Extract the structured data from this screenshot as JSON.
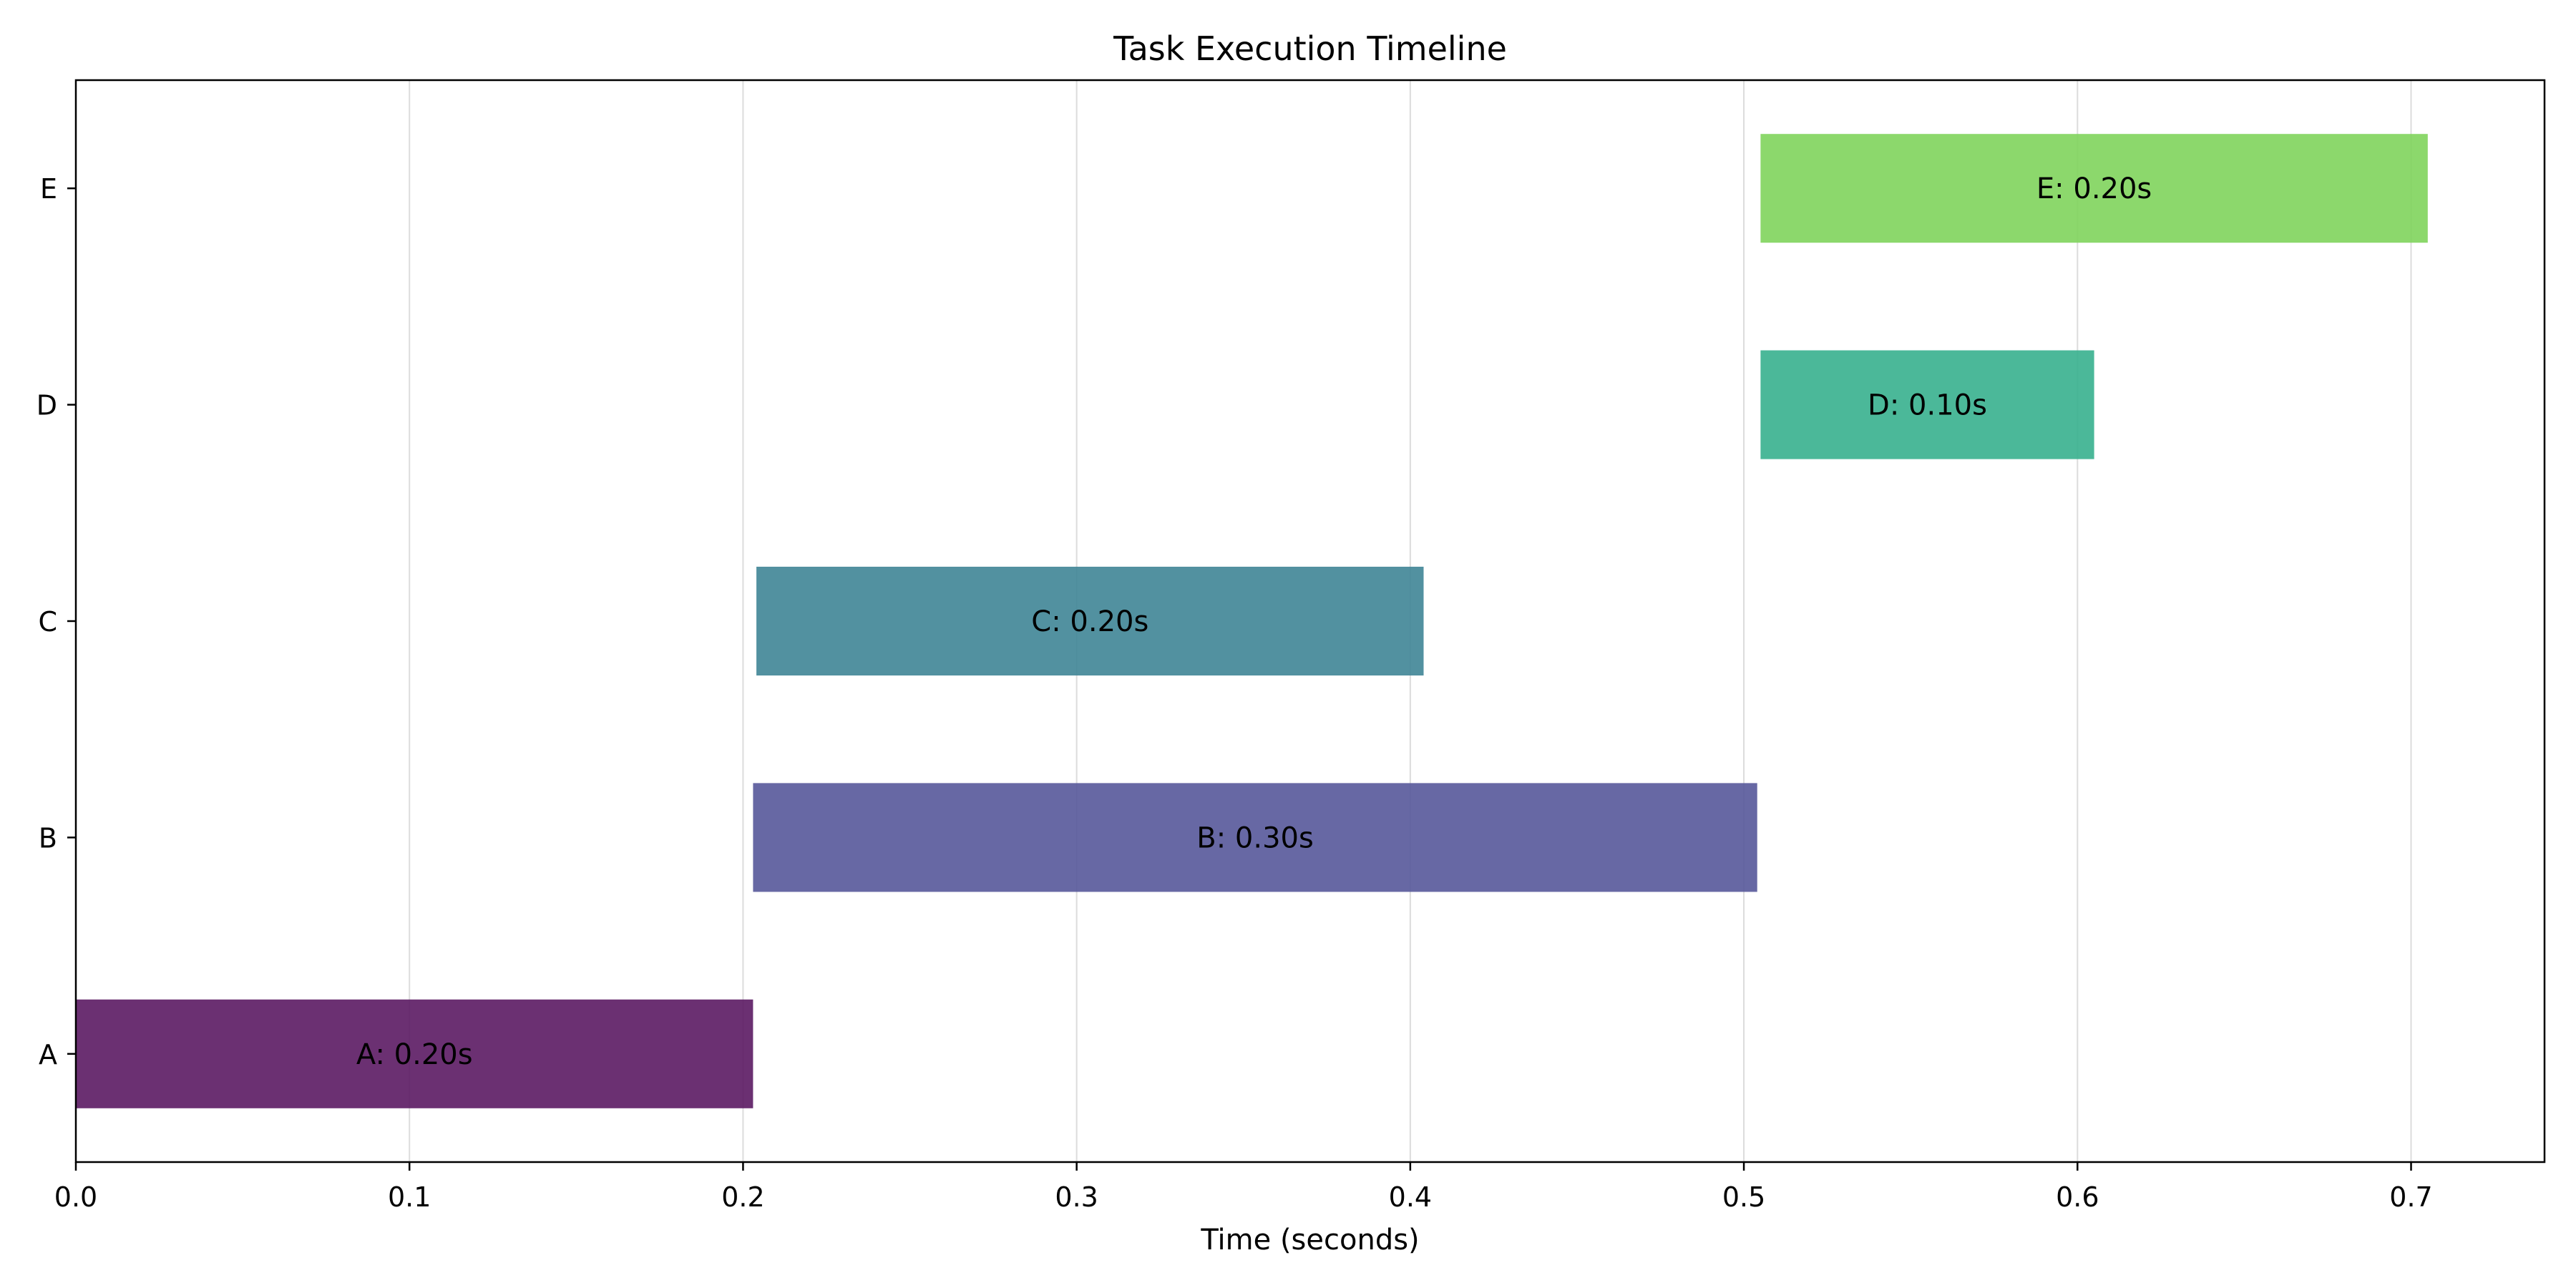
{
  "chart_data": {
    "type": "bar",
    "orientation": "horizontal",
    "title": "Task Execution Timeline",
    "xlabel": "Time (seconds)",
    "ylabel": "",
    "xlim": [
      0.0,
      0.74
    ],
    "xticks": [
      0.0,
      0.1,
      0.2,
      0.3,
      0.4,
      0.5,
      0.6,
      0.7
    ],
    "xtick_labels": [
      "0.0",
      "0.1",
      "0.2",
      "0.3",
      "0.4",
      "0.5",
      "0.6",
      "0.7"
    ],
    "grid": "x",
    "legend": "none",
    "categories": [
      "A",
      "B",
      "C",
      "D",
      "E"
    ],
    "tasks": [
      {
        "name": "A",
        "start": 0.0,
        "end": 0.203,
        "label": "A: 0.20s",
        "color": "#5b1a63"
      },
      {
        "name": "B",
        "start": 0.203,
        "end": 0.504,
        "label": "B: 0.30s",
        "color": "#56589a"
      },
      {
        "name": "C",
        "start": 0.204,
        "end": 0.404,
        "label": "C: 0.20s",
        "color": "#3f8596"
      },
      {
        "name": "D",
        "start": 0.505,
        "end": 0.605,
        "label": "D: 0.10s",
        "color": "#37b08e"
      },
      {
        "name": "E",
        "start": 0.505,
        "end": 0.705,
        "label": "E: 0.20s",
        "color": "#7fd45c"
      }
    ]
  }
}
